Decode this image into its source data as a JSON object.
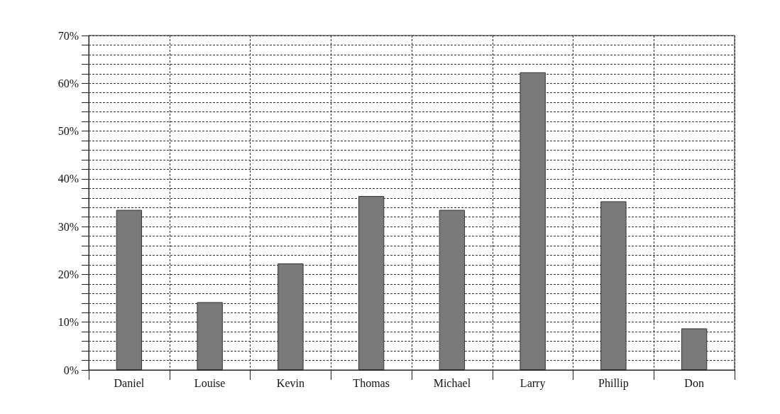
{
  "chart_data": {
    "type": "bar",
    "categories": [
      "Daniel",
      "Louise",
      "Kevin",
      "Thomas",
      "Michael",
      "Larry",
      "Phillip",
      "Don"
    ],
    "values": [
      33.5,
      14.2,
      22.3,
      36.4,
      33.5,
      62.3,
      35.3,
      8.7
    ],
    "color": "#7a7a7a",
    "ylim": [
      0,
      70
    ],
    "yticks": [
      {
        "value": 0,
        "label": "0%"
      },
      {
        "value": 2,
        "label": null
      },
      {
        "value": 4,
        "label": null
      },
      {
        "value": 6,
        "label": null
      },
      {
        "value": 8,
        "label": null
      },
      {
        "value": 10,
        "label": "10%"
      },
      {
        "value": 12,
        "label": null
      },
      {
        "value": 14,
        "label": null
      },
      {
        "value": 16,
        "label": null
      },
      {
        "value": 18,
        "label": null
      },
      {
        "value": 20,
        "label": "20%"
      },
      {
        "value": 22,
        "label": null
      },
      {
        "value": 24,
        "label": null
      },
      {
        "value": 26,
        "label": null
      },
      {
        "value": 28,
        "label": null
      },
      {
        "value": 30,
        "label": "30%"
      },
      {
        "value": 32,
        "label": null
      },
      {
        "value": 34,
        "label": null
      },
      {
        "value": 36,
        "label": null
      },
      {
        "value": 38,
        "label": null
      },
      {
        "value": 40,
        "label": "40%"
      },
      {
        "value": 42,
        "label": null
      },
      {
        "value": 44,
        "label": null
      },
      {
        "value": 46,
        "label": null
      },
      {
        "value": 48,
        "label": null
      },
      {
        "value": 50,
        "label": "50%"
      },
      {
        "value": 52,
        "label": null
      },
      {
        "value": 54,
        "label": null
      },
      {
        "value": 56,
        "label": null
      },
      {
        "value": 58,
        "label": null
      },
      {
        "value": 60,
        "label": "60%"
      },
      {
        "value": 62,
        "label": null
      },
      {
        "value": 64,
        "label": null
      },
      {
        "value": 66,
        "label": null
      },
      {
        "value": 68,
        "label": null
      },
      {
        "value": 70,
        "label": "70%"
      }
    ],
    "grid": true
  }
}
